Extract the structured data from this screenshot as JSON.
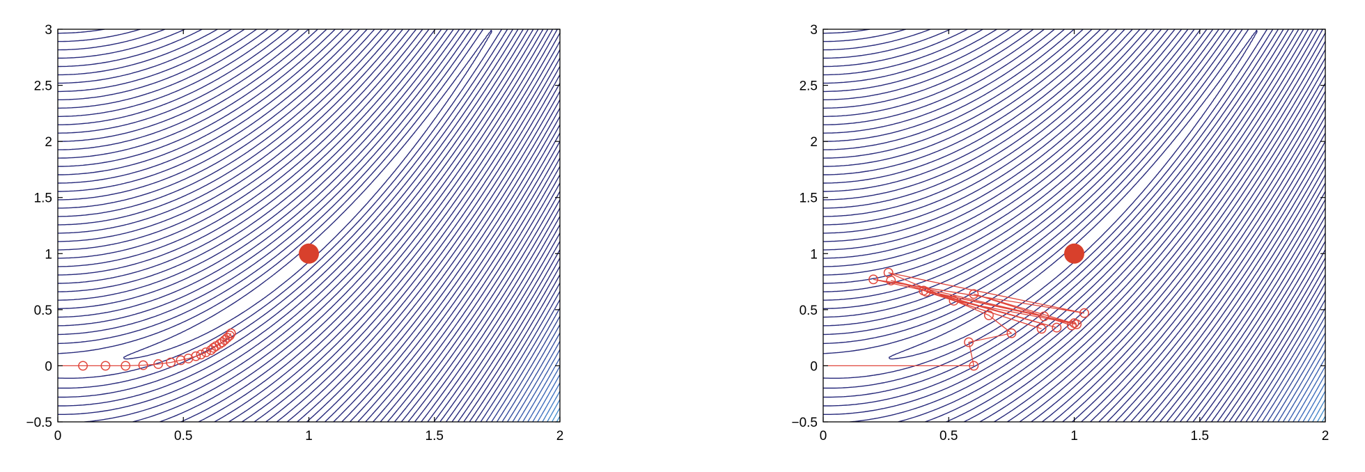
{
  "chart_data": [
    {
      "type": "line",
      "panel": "left",
      "xlim": [
        0,
        2
      ],
      "ylim": [
        -0.5,
        3
      ],
      "xticks": [
        0,
        0.5,
        1,
        1.5,
        2
      ],
      "xtick_labels": [
        "0",
        "0.5",
        "1",
        "1.5",
        "2"
      ],
      "yticks": [
        -0.5,
        0,
        0.5,
        1,
        1.5,
        2,
        2.5,
        3
      ],
      "ytick_labels": [
        "−0.5",
        "0",
        "0.5",
        "1",
        "1.5",
        "2",
        "2.5",
        "3"
      ],
      "grid": false,
      "background": "contour plot of the Rosenbrock function f(x,y) = (1−x)^2 + 100(y−x^2)^2",
      "optimum": {
        "x": 1,
        "y": 1
      },
      "series": [
        {
          "x": [
            0,
            0.1,
            0.19,
            0.27,
            0.34,
            0.4,
            0.45,
            0.49,
            0.52,
            0.55,
            0.57,
            0.59,
            0.61,
            0.62,
            0.63,
            0.645,
            0.655,
            0.665,
            0.675,
            0.685,
            0.69
          ],
          "y": [
            0,
            0,
            0,
            0,
            0.005,
            0.015,
            0.03,
            0.05,
            0.065,
            0.085,
            0.1,
            0.12,
            0.14,
            0.16,
            0.175,
            0.195,
            0.21,
            0.23,
            0.25,
            0.27,
            0.29
          ]
        }
      ]
    },
    {
      "type": "line",
      "panel": "right",
      "xlim": [
        0,
        2
      ],
      "ylim": [
        -0.5,
        3
      ],
      "xticks": [
        0,
        0.5,
        1,
        1.5,
        2
      ],
      "xtick_labels": [
        "0",
        "0.5",
        "1",
        "1.5",
        "2"
      ],
      "yticks": [
        -0.5,
        0,
        0.5,
        1,
        1.5,
        2,
        2.5,
        3
      ],
      "ytick_labels": [
        "−0.5",
        "0",
        "0.5",
        "1",
        "1.5",
        "2",
        "2.5",
        "3"
      ],
      "grid": false,
      "background": "contour plot of the Rosenbrock function f(x,y) = (1−x)^2 + 100(y−x^2)^2",
      "optimum": {
        "x": 1,
        "y": 1
      },
      "series": [
        {
          "x": [
            0,
            0.6,
            0.58,
            0.75,
            0.66,
            0.26,
            1.04,
            0.2,
            1.0,
            0.4,
            0.88,
            0.27,
            0.93,
            0.41,
            0.87,
            0.52,
            1.01,
            0.6,
            0.99
          ],
          "y": [
            0,
            0,
            0.21,
            0.29,
            0.45,
            0.83,
            0.47,
            0.77,
            0.38,
            0.67,
            0.44,
            0.76,
            0.34,
            0.66,
            0.33,
            0.58,
            0.37,
            0.64,
            0.36
          ]
        }
      ]
    }
  ],
  "colors": {
    "path": "#e0453a",
    "optimum": "#d8402c",
    "contour_low": "#26287a",
    "contour_mid": "#4ec7e6",
    "contour_high_yellow": "#f4ef82",
    "contour_high_red": "#b2182b"
  }
}
